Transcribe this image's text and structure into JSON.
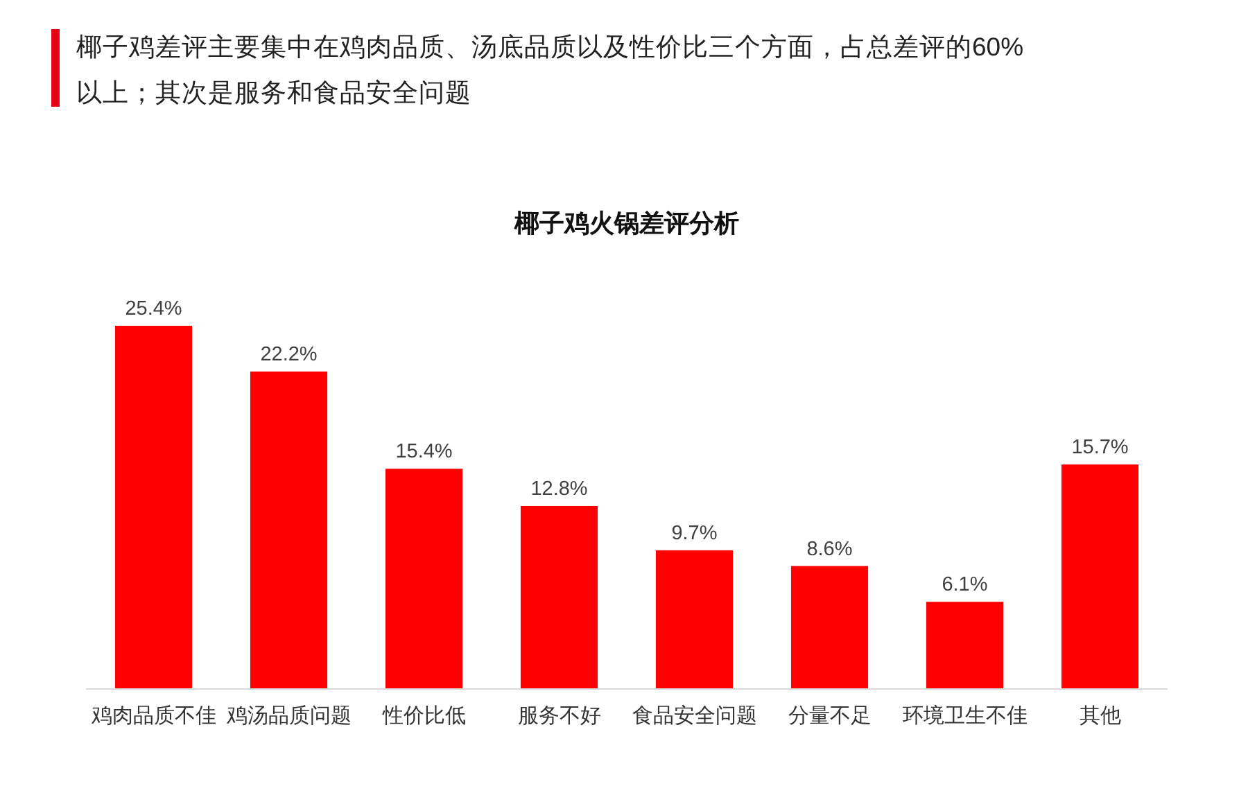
{
  "chart_data": {
    "type": "bar",
    "title": "椰子鸡火锅差评分析",
    "subtitle": "椰子鸡差评主要集中在鸡肉品质、汤底品质以及性价比三个方面，占总差评的60%以上；其次是服务和食品安全问题",
    "categories": [
      "鸡肉品质不佳",
      "鸡汤品质问题",
      "性价比低",
      "服务不好",
      "食品安全问题",
      "分量不足",
      "环境卫生不佳",
      "其他"
    ],
    "values": [
      25.4,
      22.2,
      15.4,
      12.8,
      9.7,
      8.6,
      6.1,
      15.7
    ],
    "value_labels": [
      "25.4%",
      "22.2%",
      "15.4%",
      "12.8%",
      "9.7%",
      "8.6%",
      "6.1%",
      "15.7%"
    ],
    "color": "#ff0000"
  }
}
